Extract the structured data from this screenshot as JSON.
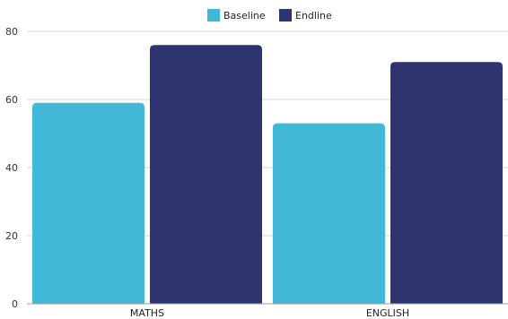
{
  "chart_data": {
    "type": "bar",
    "categories": [
      "MATHS",
      "ENGLISH"
    ],
    "series": [
      {
        "name": "Baseline",
        "values": [
          59,
          53
        ],
        "color": "#41b8d5"
      },
      {
        "name": "Endline",
        "values": [
          76,
          71
        ],
        "color": "#2e3470"
      }
    ],
    "ylim": [
      0,
      80
    ],
    "yticks": [
      0,
      20,
      40,
      60,
      80
    ],
    "grid": true,
    "legend": "top-center",
    "title": "",
    "xlabel": "",
    "ylabel": ""
  }
}
